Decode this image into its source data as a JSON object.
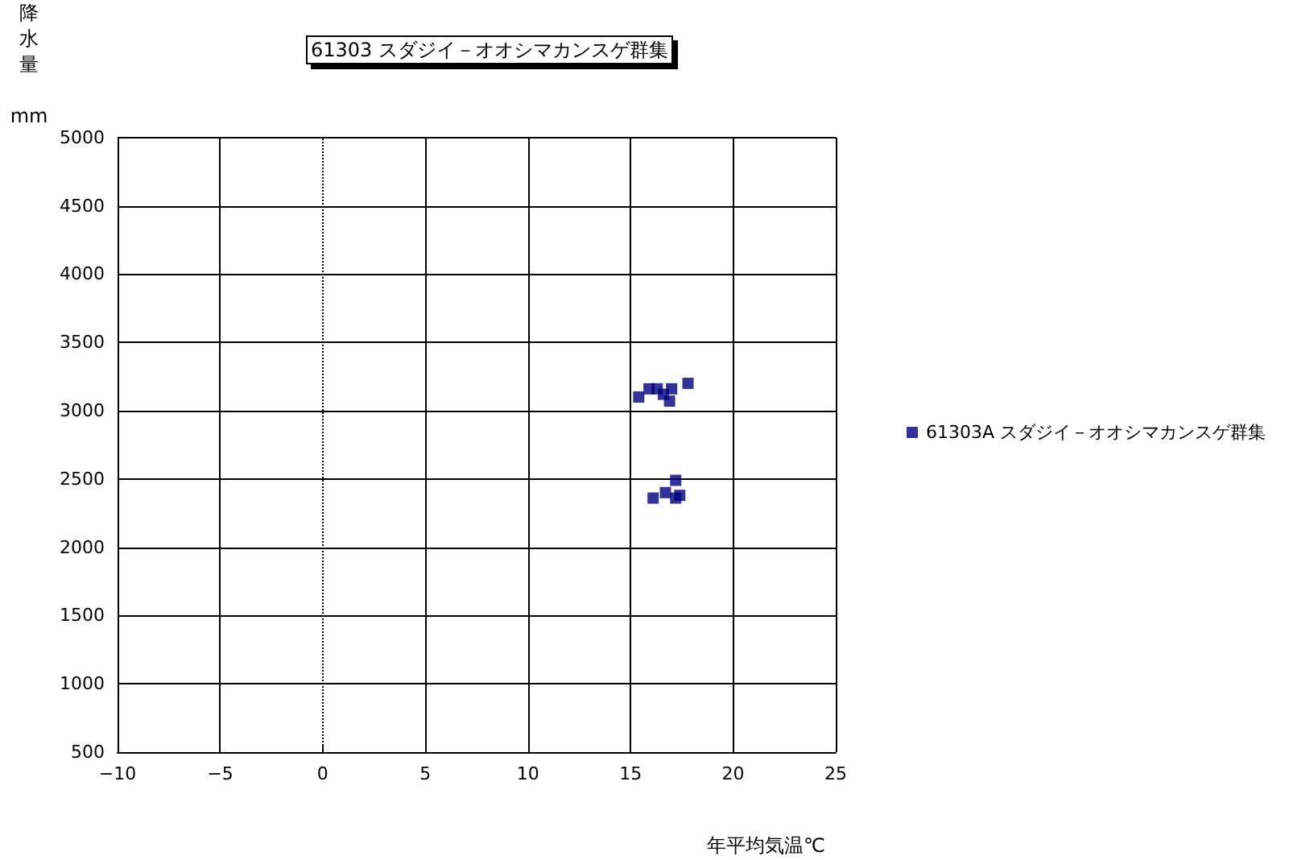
{
  "chart_data": {
    "type": "scatter",
    "title": "61303 スダジイ－オオシマカンスゲ群集",
    "xlabel": "年平均気温℃",
    "ylabel": "降水量 mm",
    "series": [
      {
        "name": "61303A スダジイ－オオシマカンスゲ群集",
        "color": "#000080",
        "x": [
          15.4,
          15.9,
          16.3,
          16.6,
          17.0,
          16.9,
          17.8,
          17.2,
          16.1,
          16.7,
          17.2,
          17.4
        ],
        "values": [
          3100,
          3160,
          3160,
          3120,
          3160,
          3070,
          3200,
          2490,
          2360,
          2400,
          2360,
          2380
        ]
      }
    ],
    "xlim": [
      -10,
      25
    ],
    "xticks": [
      -10,
      -5,
      0,
      5,
      10,
      15,
      20,
      25
    ],
    "ylim": [
      500,
      5000
    ],
    "yticks": [
      500,
      1000,
      1500,
      2000,
      2500,
      3000,
      3500,
      4000,
      4500,
      5000
    ],
    "grid": true,
    "legend": "right",
    "marker": "square",
    "ref_lines": [
      {
        "axis": "x",
        "value": 0,
        "line_style": "dotted",
        "color": "#000000"
      }
    ]
  }
}
